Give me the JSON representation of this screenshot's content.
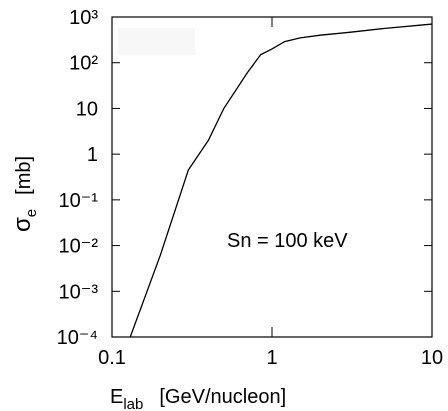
{
  "chart_data": {
    "type": "line",
    "xlabel": {
      "symbol": "E",
      "subscript": "lab",
      "unit": "[GeV/nucleon]"
    },
    "ylabel": {
      "symbol": "σ",
      "subscript": "e",
      "unit": "[mb]"
    },
    "annotation": "Sn = 100 keV",
    "xscale": "log",
    "yscale": "log",
    "xlim": [
      0.1,
      10
    ],
    "ylim": [
      0.0001,
      1000
    ],
    "xticks": [
      0.1,
      1,
      10
    ],
    "yticks": [
      {
        "value": 0.0001,
        "label": "10⁻⁴"
      },
      {
        "value": 0.001,
        "label": "10⁻³"
      },
      {
        "value": 0.01,
        "label": "10⁻²"
      },
      {
        "value": 0.1,
        "label": "10⁻¹"
      },
      1,
      10,
      {
        "value": 100,
        "label": "10²"
      },
      {
        "value": 1000,
        "label": "10³"
      }
    ],
    "series": [
      {
        "color": "#000000",
        "x": [
          0.13,
          0.2,
          0.3,
          0.4,
          0.5,
          0.7,
          0.85,
          1,
          1.2,
          1.5,
          2,
          3,
          5,
          10
        ],
        "values": [
          0.0001,
          0.006,
          0.45,
          2,
          10,
          60,
          150,
          200,
          290,
          350,
          400,
          460,
          560,
          700
        ]
      }
    ]
  }
}
